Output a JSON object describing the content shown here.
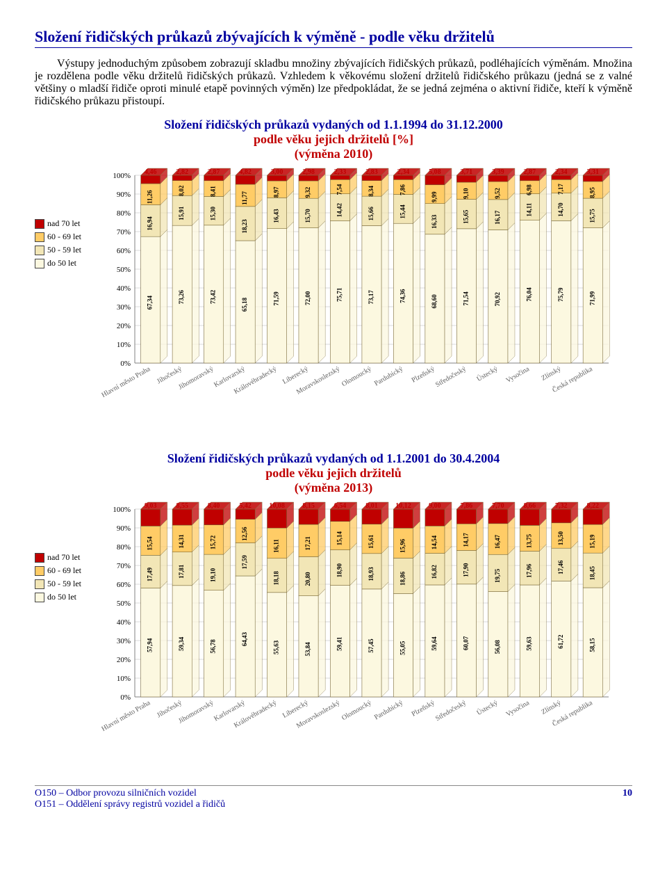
{
  "page_title": "Složení řidičských průkazů zbývajících k výměně - podle věku držitelů",
  "intro_text": "Výstupy jednoduchým způsobem zobrazují skladbu množiny zbývajících řidičských průkazů, podléhajících výměnám. Množina je rozdělena podle věku držitelů řidičských průkazů. Vzhledem k věkovému složení držitelů řidičského průkazu (jedná se z valné většiny o mladší řidiče oproti minulé etapě povinných výměn) lze předpokládat, že se jedná zejména o aktivní řidiče, kteří k výměně řidičského průkazu přistoupí.",
  "legend_labels": [
    "nad 70 let",
    "60 - 69 let",
    "50 - 59 let",
    "do 50 let"
  ],
  "colors": {
    "nad70": "#c00000",
    "60_69": "#ffcc66",
    "50_59": "#f2e6b6",
    "do50": "#fcf8e0",
    "top_label": "#c00000",
    "axis": "#808080",
    "grid": "#d9d9d9",
    "bar_border": "#7a6a3a",
    "category_text": "#606060",
    "title_blue": "#0000a0",
    "title_red": "#c00000"
  },
  "y_axis": {
    "min": 0,
    "max": 100,
    "step": 10,
    "suffix": "%"
  },
  "categories": [
    "Hlavní město Praha",
    "Jihočeský",
    "Jihomoravský",
    "Karlovarský",
    "Královéhradecký",
    "Liberecký",
    "Moravskoslezský",
    "Olomoucký",
    "Pardubický",
    "Plzeňský",
    "Středočeský",
    "Ústecký",
    "Vysočina",
    "Zlínský",
    "Česká republika"
  ],
  "chart2010": {
    "title_line1": "Složení řidičských průkazů vydaných od 1.1.1994 do 31.12.2000",
    "title_line2": "podle věku jejich držitelů [%]",
    "title_line3": "(výměna 2010)",
    "top_labels": [
      "4,46",
      "2,82",
      "2,87",
      "4,82",
      "3,00",
      "2,98",
      "2,33",
      "2,83",
      "2,34",
      "5,08",
      "3,71",
      "3,39",
      "2,87",
      "2,34",
      "3,31"
    ],
    "series": {
      "nad70": [
        4.46,
        2.82,
        2.87,
        4.82,
        3.0,
        2.98,
        2.33,
        2.83,
        2.34,
        5.08,
        3.71,
        3.39,
        2.87,
        2.34,
        3.31
      ],
      "g60_69": [
        11.26,
        8.02,
        8.41,
        11.77,
        8.97,
        9.32,
        7.54,
        8.34,
        7.86,
        9.99,
        9.1,
        9.52,
        6.98,
        7.17,
        8.95
      ],
      "g50_59": [
        16.94,
        15.91,
        15.3,
        18.23,
        16.43,
        15.7,
        14.42,
        15.66,
        15.44,
        16.33,
        15.65,
        16.17,
        14.11,
        14.7,
        15.75
      ],
      "do50": [
        67.34,
        73.26,
        73.42,
        65.18,
        71.59,
        72.0,
        75.71,
        73.17,
        74.36,
        68.6,
        71.54,
        70.92,
        76.04,
        75.79,
        71.99
      ]
    },
    "labels_60_69": [
      "11,26",
      "8,02",
      "8,41",
      "11,77",
      "8,97",
      "9,32",
      "7,54",
      "8,34",
      "7,86",
      "9,99",
      "9,10",
      "9,52",
      "6,98",
      "7,17",
      "8,95"
    ],
    "labels_50_59": [
      "16,94",
      "15,91",
      "15,30",
      "18,23",
      "16,43",
      "15,70",
      "14,42",
      "15,66",
      "15,44",
      "16,33",
      "15,65",
      "16,17",
      "14,11",
      "14,70",
      "15,75"
    ],
    "labels_do50": [
      "67,34",
      "73,26",
      "73,42",
      "65,18",
      "71,59",
      "72,00",
      "75,71",
      "73,17",
      "74,36",
      "68,60",
      "71,54",
      "70,92",
      "76,04",
      "75,79",
      "71,99"
    ]
  },
  "chart2013": {
    "title_line1": "Složení řidičských průkazů vydaných od 1.1.2001 do 30.4.2004",
    "title_line2": "podle věku jejich držitelů",
    "title_line3": "(výměna 2013)",
    "top_labels": [
      "9,03",
      "8,55",
      "8,40",
      "5,42",
      "10,08",
      "8,15",
      "6,54",
      "8,01",
      "10,12",
      "9,00",
      "7,86",
      "7,70",
      "8,66",
      "7,32",
      "8,22"
    ],
    "series": {
      "nad70": [
        9.03,
        8.55,
        8.4,
        5.42,
        10.08,
        8.15,
        6.54,
        8.01,
        10.12,
        9.0,
        7.86,
        7.7,
        8.66,
        7.32,
        8.22
      ],
      "g60_69": [
        15.54,
        14.31,
        15.72,
        12.56,
        16.11,
        17.21,
        15.14,
        15.61,
        15.96,
        14.54,
        14.17,
        16.47,
        13.75,
        13.5,
        15.19
      ],
      "g50_59": [
        17.49,
        17.81,
        19.1,
        17.59,
        18.18,
        20.8,
        18.9,
        18.93,
        18.86,
        16.82,
        17.9,
        19.75,
        17.96,
        17.46,
        18.45
      ],
      "do50": [
        57.94,
        59.34,
        56.78,
        64.43,
        55.63,
        53.84,
        59.41,
        57.45,
        55.05,
        59.64,
        60.07,
        56.08,
        59.63,
        61.72,
        58.15
      ]
    },
    "labels_60_69": [
      "15,54",
      "14,31",
      "15,72",
      "12,56",
      "16,11",
      "17,21",
      "15,14",
      "15,61",
      "15,96",
      "14,54",
      "14,17",
      "16,47",
      "13,75",
      "13,50",
      "15,19"
    ],
    "labels_50_59": [
      "17,49",
      "17,81",
      "19,10",
      "17,59",
      "18,18",
      "20,80",
      "18,90",
      "18,93",
      "18,86",
      "16,82",
      "17,90",
      "19,75",
      "17,96",
      "17,46",
      "18,45"
    ],
    "labels_do50": [
      "57,94",
      "59,34",
      "56,78",
      "64,43",
      "55,63",
      "53,84",
      "59,41",
      "57,45",
      "55,05",
      "59,64",
      "60,07",
      "56,08",
      "59,63",
      "61,72",
      "58,15"
    ]
  },
  "footer_line1": "O150 – Odbor provozu silničních vozidel",
  "footer_line2": "O151 – Oddělení správy registrů vozidel a řidičů",
  "page_number": "10"
}
